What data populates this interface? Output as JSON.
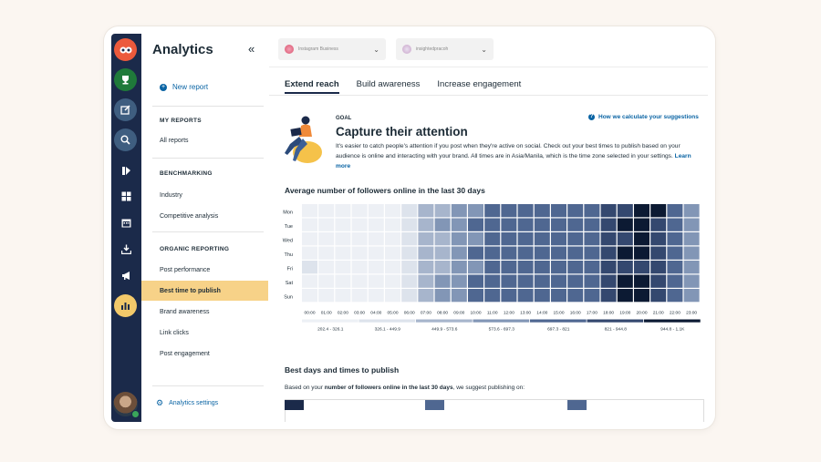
{
  "rail": {
    "icons": [
      "owl-logo-icon",
      "trophy-icon",
      "compose-icon",
      "search-icon",
      "inbox-icon",
      "dashboard-icon",
      "calendar-icon",
      "download-icon",
      "megaphone-icon",
      "analytics-icon"
    ]
  },
  "sidebar": {
    "title": "Analytics",
    "collapse_glyph": "«",
    "new_report": "New report",
    "my_reports": "MY REPORTS",
    "all_reports": "All reports",
    "benchmarking": "BENCHMARKING",
    "industry": "Industry",
    "competitive": "Competitive analysis",
    "organic": "ORGANIC REPORTING",
    "items": [
      "Post performance",
      "Best time to publish",
      "Brand awareness",
      "Link clicks",
      "Post engagement"
    ],
    "active_item": "Best time to publish",
    "settings": "Analytics settings"
  },
  "topbar": {
    "account_dropdown": "Instagram Business",
    "profile_dropdown": "insightedpracoh"
  },
  "tabs": [
    {
      "label": "Extend reach",
      "active": true
    },
    {
      "label": "Build awareness",
      "active": false
    },
    {
      "label": "Increase engagement",
      "active": false
    }
  ],
  "goal": {
    "label": "GOAL",
    "headline": "Capture their attention",
    "description": "It's easier to catch people's attention if you post when they're active on social. Check out your best times to publish based on your audience is online and interacting with your brand. All times are in Asia/Manila, which is the time zone selected in your settings.",
    "learn_more": "Learn more",
    "how_we_calc": "How we calculate your suggestions"
  },
  "chart_data": {
    "type": "heatmap",
    "title": "Average number of followers online in the last 30 days",
    "rows": [
      "Mon",
      "Tue",
      "Wed",
      "Thu",
      "Fri",
      "Sat",
      "Sun"
    ],
    "columns": [
      "00:00",
      "01:00",
      "02:00",
      "03:00",
      "04:00",
      "05:00",
      "06:00",
      "07:00",
      "08:00",
      "09:00",
      "10:00",
      "11:00",
      "12:00",
      "13:00",
      "14:00",
      "15:00",
      "16:00",
      "17:00",
      "18:00",
      "19:00",
      "20:00",
      "21:00",
      "22:00",
      "23:00"
    ],
    "levels": [
      [
        0,
        0,
        0,
        0,
        0,
        0,
        1,
        2,
        2,
        3,
        3,
        4,
        4,
        4,
        4,
        4,
        4,
        4,
        5,
        5,
        6,
        6,
        4,
        3
      ],
      [
        0,
        0,
        0,
        0,
        0,
        0,
        1,
        2,
        3,
        3,
        4,
        4,
        4,
        4,
        4,
        4,
        4,
        4,
        5,
        6,
        6,
        5,
        4,
        3
      ],
      [
        0,
        0,
        0,
        0,
        0,
        0,
        1,
        2,
        2,
        3,
        3,
        4,
        4,
        4,
        4,
        4,
        4,
        4,
        5,
        5,
        6,
        5,
        4,
        3
      ],
      [
        0,
        0,
        0,
        0,
        0,
        0,
        1,
        2,
        2,
        3,
        4,
        4,
        4,
        4,
        4,
        4,
        4,
        4,
        5,
        6,
        6,
        5,
        4,
        3
      ],
      [
        1,
        0,
        0,
        0,
        0,
        0,
        1,
        2,
        2,
        3,
        3,
        4,
        4,
        4,
        4,
        4,
        4,
        4,
        5,
        5,
        5,
        5,
        4,
        3
      ],
      [
        0,
        0,
        0,
        0,
        0,
        0,
        1,
        2,
        3,
        3,
        4,
        4,
        4,
        4,
        4,
        4,
        4,
        4,
        5,
        6,
        6,
        5,
        4,
        3
      ],
      [
        0,
        0,
        0,
        0,
        0,
        0,
        1,
        2,
        3,
        3,
        4,
        4,
        4,
        4,
        4,
        4,
        4,
        4,
        5,
        6,
        6,
        5,
        4,
        3
      ]
    ],
    "legend": [
      "202.4 - 326.1",
      "326.1 - 449.9",
      "449.9 - 573.6",
      "573.6 - 697.3",
      "697.3 - 821",
      "821 - 944.8",
      "944.8 - 1.1K"
    ],
    "colors": [
      "#edf0f5",
      "#dde3ec",
      "#a7b5cc",
      "#8296b6",
      "#4f6791",
      "#34486f",
      "#0c1a33"
    ]
  },
  "best": {
    "title": "Best days and times to publish",
    "sub_prefix": "Based on your ",
    "sub_bold": "number of followers online in the last 30 days",
    "sub_suffix": ", we suggest publishing on:"
  }
}
